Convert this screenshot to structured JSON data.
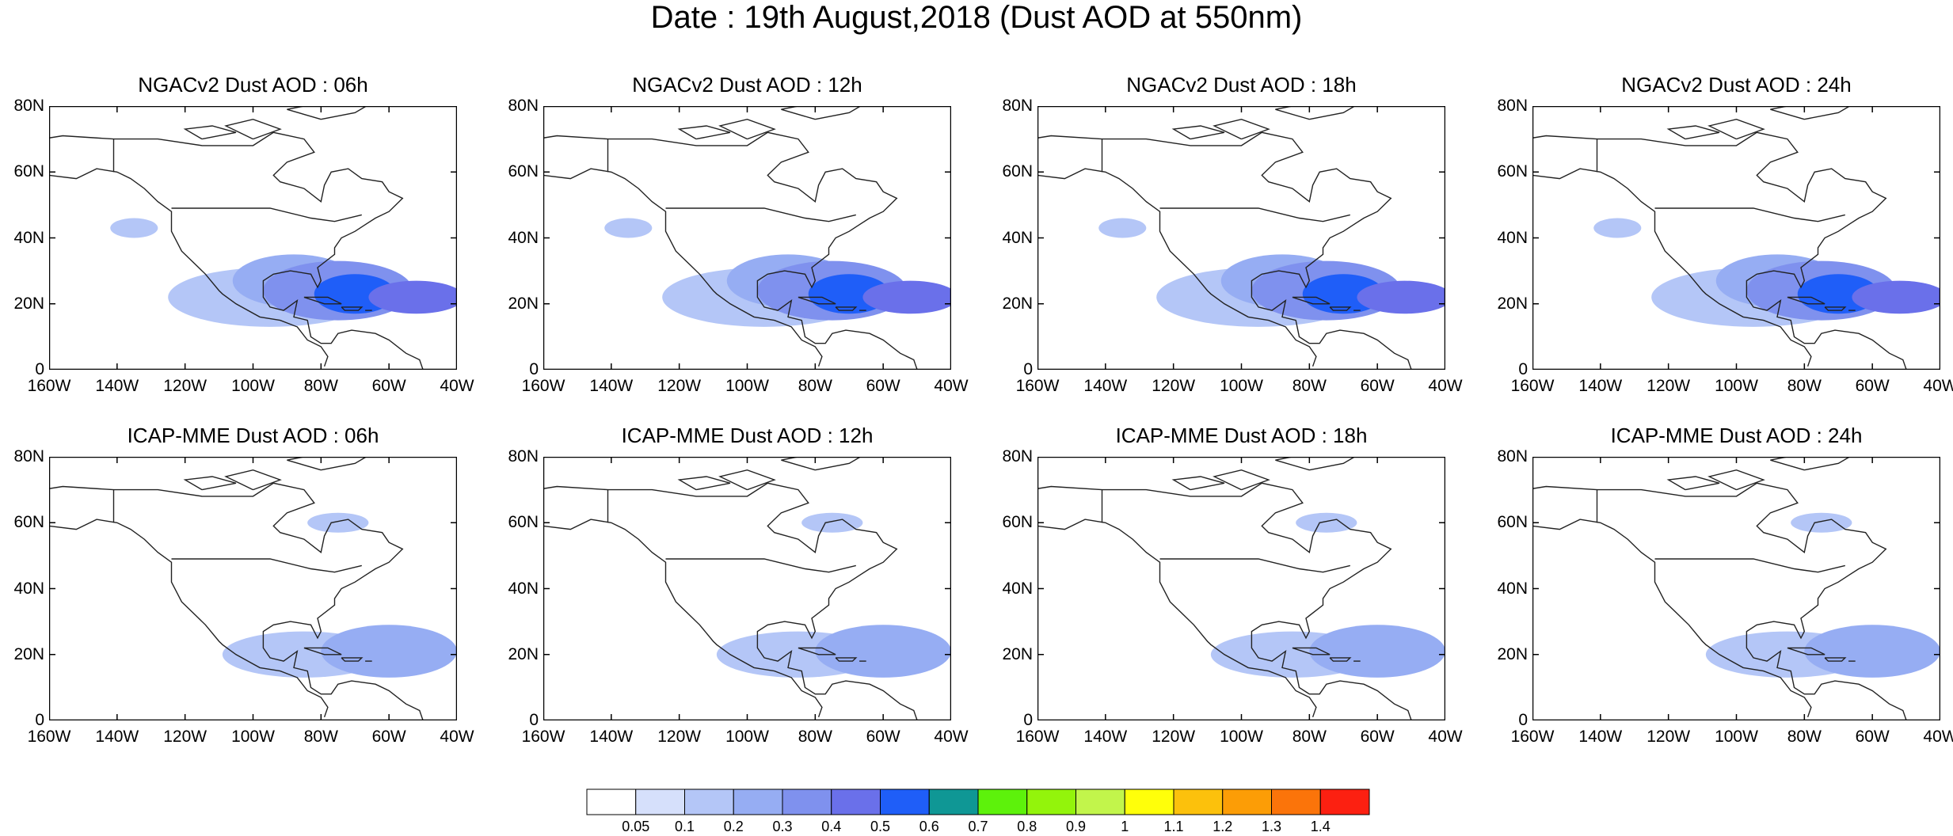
{
  "figure": {
    "title": "Date : 19th August,2018 (Dust AOD at 550nm)"
  },
  "axes": {
    "lat_labels": [
      "80N",
      "60N",
      "40N",
      "20N",
      "0"
    ],
    "lat_values": [
      80,
      60,
      40,
      20,
      0
    ],
    "lon_labels": [
      "160W",
      "140W",
      "120W",
      "100W",
      "80W",
      "60W",
      "40W"
    ],
    "lon_values": [
      -160,
      -140,
      -120,
      -100,
      -80,
      -60,
      -40
    ],
    "lon_range": [
      -160,
      -40
    ],
    "lat_range": [
      0,
      80
    ]
  },
  "panels": [
    {
      "title": "NGACv2 Dust AOD : 06h",
      "model": "NGACv2",
      "hour": 6
    },
    {
      "title": "NGACv2 Dust AOD : 12h",
      "model": "NGACv2",
      "hour": 12
    },
    {
      "title": "NGACv2 Dust AOD : 18h",
      "model": "NGACv2",
      "hour": 18
    },
    {
      "title": "NGACv2 Dust AOD : 24h",
      "model": "NGACv2",
      "hour": 24
    },
    {
      "title": "ICAP-MME Dust AOD : 06h",
      "model": "ICAP-MME",
      "hour": 6
    },
    {
      "title": "ICAP-MME Dust AOD : 12h",
      "model": "ICAP-MME",
      "hour": 12
    },
    {
      "title": "ICAP-MME Dust AOD : 18h",
      "model": "ICAP-MME",
      "hour": 18
    },
    {
      "title": "ICAP-MME Dust AOD : 24h",
      "model": "ICAP-MME",
      "hour": 24
    }
  ],
  "colorbar": {
    "labels": [
      "0.05",
      "0.1",
      "0.2",
      "0.3",
      "0.4",
      "0.5",
      "0.6",
      "0.7",
      "0.8",
      "0.9",
      "1",
      "1.1",
      "1.2",
      "1.3",
      "1.4"
    ],
    "colors": [
      "#ffffff",
      "#d6e0fb",
      "#b4c6f7",
      "#96adf3",
      "#7f91ee",
      "#6a70ea",
      "#1f5ef8",
      "#0f9795",
      "#5df20b",
      "#93f40b",
      "#c2f54b",
      "#ffff0a",
      "#fcc10c",
      "#fc9d06",
      "#fb740a",
      "#fc2011"
    ]
  },
  "plumes": {
    "ngac": [
      {
        "lon": -95,
        "lat": 22,
        "rlon": 30,
        "rlat": 9,
        "aod": 0.15
      },
      {
        "lon": -88,
        "lat": 27,
        "rlon": 18,
        "rlat": 8,
        "aod": 0.2
      },
      {
        "lon": -75,
        "lat": 24,
        "rlon": 22,
        "rlat": 9,
        "aod": 0.3
      },
      {
        "lon": -70,
        "lat": 23,
        "rlon": 12,
        "rlat": 6,
        "aod": 0.5
      },
      {
        "lon": -52,
        "lat": 22,
        "rlon": 14,
        "rlat": 5,
        "aod": 0.45
      },
      {
        "lon": -135,
        "lat": 43,
        "rlon": 7,
        "rlat": 3,
        "aod": 0.1
      }
    ],
    "icap": [
      {
        "lon": -85,
        "lat": 20,
        "rlon": 24,
        "rlat": 7,
        "aod": 0.15
      },
      {
        "lon": -60,
        "lat": 21,
        "rlon": 20,
        "rlat": 8,
        "aod": 0.2
      },
      {
        "lon": -75,
        "lat": 60,
        "rlon": 9,
        "rlat": 3,
        "aod": 0.1
      }
    ]
  }
}
